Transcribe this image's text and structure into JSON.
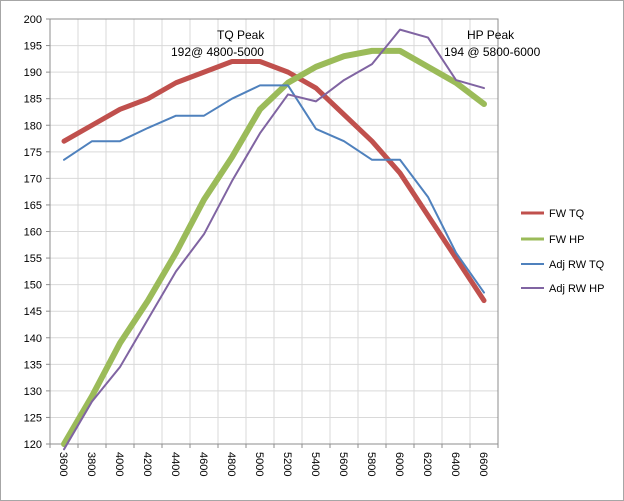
{
  "chart_data": {
    "type": "line",
    "title": "",
    "xlabel": "",
    "ylabel": "",
    "x": [
      3600,
      3800,
      4000,
      4200,
      4400,
      4600,
      4800,
      5000,
      5200,
      5400,
      5600,
      5800,
      6000,
      6200,
      6400,
      6600
    ],
    "ylim": [
      120,
      200
    ],
    "yticks": [
      120,
      125,
      130,
      135,
      140,
      145,
      150,
      155,
      160,
      165,
      170,
      175,
      180,
      185,
      190,
      195,
      200
    ],
    "grid": true,
    "legend_position": "right",
    "series": [
      {
        "name": "FW TQ",
        "color": "#c0504d",
        "width": 5,
        "values": [
          177,
          180,
          183,
          185,
          188,
          190,
          192,
          192,
          190,
          187,
          182,
          177,
          171,
          163,
          155,
          147
        ]
      },
      {
        "name": "FW HP",
        "color": "#9bbb59",
        "width": 6,
        "values": [
          120,
          129,
          139,
          147,
          156,
          166,
          174,
          183,
          188,
          191,
          193,
          194,
          194,
          191,
          188,
          184
        ]
      },
      {
        "name": "Adj RW TQ",
        "color": "#4f81bd",
        "width": 2,
        "values": [
          173.5,
          177,
          177,
          179.5,
          181.8,
          181.8,
          185,
          187.5,
          187.5,
          179.3,
          177,
          173.5,
          173.5,
          166.5,
          156,
          148.5
        ]
      },
      {
        "name": "Adj RW HP",
        "color": "#8064a2",
        "width": 2,
        "values": [
          119,
          128,
          134.5,
          143.5,
          152.5,
          159.5,
          169.5,
          178.5,
          185.8,
          184.5,
          188.5,
          191.5,
          198,
          196.5,
          188.5,
          187
        ]
      }
    ],
    "annotations": [
      {
        "line1": "TQ Peak",
        "line2": "192@ 4800-5000"
      },
      {
        "line1": "HP Peak",
        "line2": "194 @ 5800-6000"
      }
    ]
  }
}
